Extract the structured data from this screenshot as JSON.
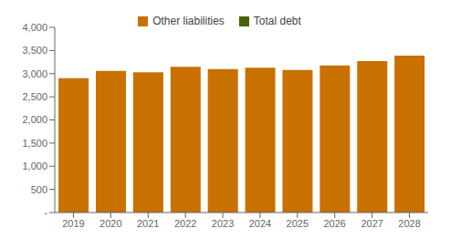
{
  "chart_data": {
    "type": "bar",
    "categories": [
      "2019",
      "2020",
      "2021",
      "2022",
      "2023",
      "2024",
      "2025",
      "2026",
      "2027",
      "2028"
    ],
    "series": [
      {
        "name": "Other liabilities",
        "color": "#C87000",
        "values": [
          2900,
          3060,
          3030,
          3150,
          3100,
          3130,
          3080,
          3175,
          3270,
          3390
        ]
      },
      {
        "name": "Total debt",
        "color": "#4B6300",
        "values": [
          null,
          null,
          null,
          null,
          null,
          null,
          null,
          null,
          null,
          null
        ]
      }
    ],
    "ylim": [
      0,
      4000
    ],
    "yticks": [
      {
        "value": 0,
        "label": "-"
      },
      500,
      {
        "value": 1000,
        "label": "1,000"
      },
      {
        "value": 1500,
        "label": "1,500"
      },
      {
        "value": 2000,
        "label": "2,000"
      },
      {
        "value": 2500,
        "label": "2,500"
      },
      {
        "value": 3000,
        "label": "3,000"
      },
      {
        "value": 3500,
        "label": "3,500"
      },
      {
        "value": 4000,
        "label": "4,000"
      }
    ],
    "grid": false,
    "legend": "top"
  }
}
